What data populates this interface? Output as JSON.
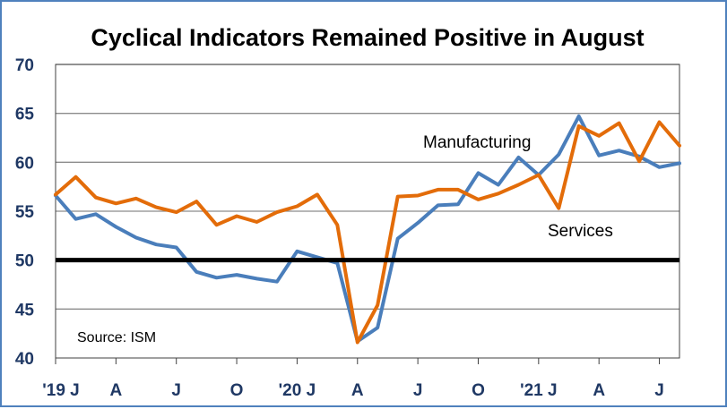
{
  "chart_data": {
    "type": "line",
    "title": "Cyclical Indicators Remained Positive in August",
    "source": "Source: ISM",
    "ylim": [
      40,
      70
    ],
    "yticks": [
      40,
      45,
      50,
      55,
      60,
      65,
      70
    ],
    "x_tick_labels": [
      "'19 J",
      "A",
      "J",
      "O",
      "'20 J",
      "A",
      "J",
      "O",
      "'21 J",
      "A",
      "J"
    ],
    "x": [
      "Jan 2019",
      "Feb 2019",
      "Mar 2019",
      "Apr 2019",
      "May 2019",
      "Jun 2019",
      "Jul 2019",
      "Aug 2019",
      "Sep 2019",
      "Oct 2019",
      "Nov 2019",
      "Dec 2019",
      "Jan 2020",
      "Feb 2020",
      "Mar 2020",
      "Apr 2020",
      "May 2020",
      "Jun 2020",
      "Jul 2020",
      "Aug 2020",
      "Sep 2020",
      "Oct 2020",
      "Nov 2020",
      "Dec 2020",
      "Jan 2021",
      "Feb 2021",
      "Mar 2021",
      "Apr 2021",
      "May 2021",
      "Jun 2021",
      "Jul 2021",
      "Aug 2021"
    ],
    "series": [
      {
        "name": "Manufacturing",
        "color": "#4a7ebb",
        "values": [
          56.6,
          54.2,
          54.7,
          53.4,
          52.3,
          51.6,
          51.3,
          48.8,
          48.2,
          48.5,
          48.1,
          47.8,
          50.9,
          50.3,
          49.7,
          41.7,
          43.1,
          52.2,
          53.8,
          55.6,
          55.7,
          58.9,
          57.7,
          60.5,
          58.7,
          60.8,
          64.7,
          60.7,
          61.2,
          60.6,
          59.5,
          59.9
        ]
      },
      {
        "name": "Services",
        "color": "#e36c09",
        "values": [
          56.7,
          58.5,
          56.4,
          55.8,
          56.3,
          55.4,
          54.9,
          56.0,
          53.6,
          54.5,
          53.9,
          54.9,
          55.5,
          56.7,
          53.6,
          41.6,
          45.4,
          56.5,
          56.6,
          57.2,
          57.2,
          56.2,
          56.8,
          57.7,
          58.7,
          55.3,
          63.7,
          62.7,
          64.0,
          60.1,
          64.1,
          61.7
        ]
      }
    ],
    "reference_line": {
      "value": 50,
      "color": "#000000"
    },
    "grid": true
  }
}
